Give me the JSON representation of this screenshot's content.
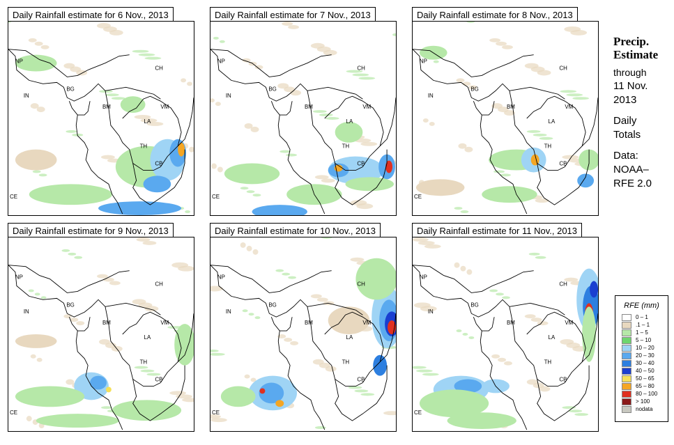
{
  "panels": [
    {
      "title": "Daily Rainfall estimate for  6 Nov., 2013"
    },
    {
      "title": "Daily Rainfall estimate for  7 Nov., 2013"
    },
    {
      "title": "Daily Rainfall estimate for  8 Nov., 2013"
    },
    {
      "title": "Daily Rainfall estimate for  9 Nov., 2013"
    },
    {
      "title": "Daily Rainfall estimate for  10 Nov., 2013"
    },
    {
      "title": "Daily Rainfall estimate for  11 Nov., 2013"
    }
  ],
  "country_labels": {
    "np": "NP",
    "in": "IN",
    "bg": "BG",
    "bm": "BM",
    "ch": "CH",
    "vm": "VM",
    "la": "LA",
    "th": "TH",
    "cb": "CB",
    "ce": "CE"
  },
  "side": {
    "title_line1": "Precip.",
    "title_line2": "Estimate",
    "through": "through",
    "date_line1": "11 Nov.",
    "date_line2": "2013",
    "daily": "Daily",
    "totals": "Totals",
    "data_label": "Data:",
    "source_line1": "NOAA–",
    "source_line2": "RFE 2.0"
  },
  "legend": {
    "title": "RFE (mm)",
    "items": [
      {
        "label": "0 – 1",
        "color": "#ffffff"
      },
      {
        "label": ".1 – 1",
        "color": "#e8d8bf"
      },
      {
        "label": "1 – 5",
        "color": "#b6e8a8"
      },
      {
        "label": "5 – 10",
        "color": "#6ed66e"
      },
      {
        "label": "10 – 20",
        "color": "#9fd4f5"
      },
      {
        "label": "20 – 30",
        "color": "#5aa9ef"
      },
      {
        "label": "30 – 40",
        "color": "#2d7fe0"
      },
      {
        "label": "40 – 50",
        "color": "#1a3fd0"
      },
      {
        "label": "50 – 65",
        "color": "#f5e05a"
      },
      {
        "label": "65 – 80",
        "color": "#f5a623"
      },
      {
        "label": "80 – 100",
        "color": "#e03020"
      },
      {
        "label": "> 100",
        "color": "#8b1a1a"
      },
      {
        "label": "nodata",
        "color": "#c8c8c0"
      }
    ]
  }
}
